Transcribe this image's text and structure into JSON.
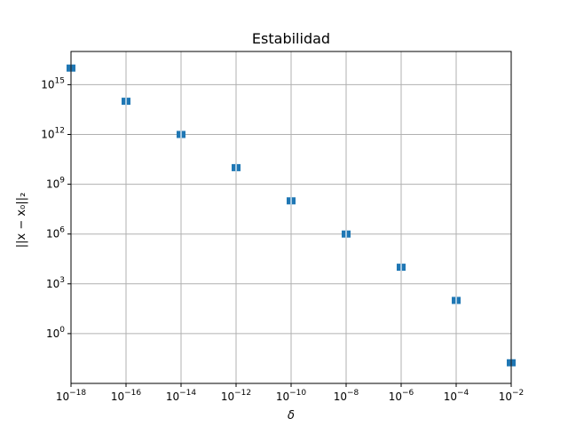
{
  "chart_data": {
    "type": "scatter",
    "title": "Estabilidad",
    "xlabel": "δ",
    "ylabel": "||x − x₀||₂",
    "xscale": "log",
    "yscale": "log",
    "xlim": [
      1e-18,
      0.01
    ],
    "ylim": [
      0.001,
      1e+17
    ],
    "grid": true,
    "marker_color": "#1f77b4",
    "x_ticks": [
      {
        "value": 1e-18,
        "base": "10",
        "exp": "−18"
      },
      {
        "value": 1e-16,
        "base": "10",
        "exp": "−16"
      },
      {
        "value": 1e-14,
        "base": "10",
        "exp": "−14"
      },
      {
        "value": 1e-12,
        "base": "10",
        "exp": "−12"
      },
      {
        "value": 1e-10,
        "base": "10",
        "exp": "−10"
      },
      {
        "value": 1e-08,
        "base": "10",
        "exp": "−8"
      },
      {
        "value": 1e-06,
        "base": "10",
        "exp": "−6"
      },
      {
        "value": 0.0001,
        "base": "10",
        "exp": "−4"
      },
      {
        "value": 0.01,
        "base": "10",
        "exp": "−2"
      }
    ],
    "y_ticks": [
      {
        "value": 1,
        "base": "10",
        "exp": "0"
      },
      {
        "value": 1000.0,
        "base": "10",
        "exp": "3"
      },
      {
        "value": 1000000.0,
        "base": "10",
        "exp": "6"
      },
      {
        "value": 1000000000.0,
        "base": "10",
        "exp": "9"
      },
      {
        "value": 1000000000000.0,
        "base": "10",
        "exp": "12"
      },
      {
        "value": 1000000000000000.0,
        "base": "10",
        "exp": "15"
      }
    ],
    "points": [
      {
        "x": 1e-18,
        "y": 1e+16
      },
      {
        "x": 1e-16,
        "y": 100000000000000.0
      },
      {
        "x": 1e-14,
        "y": 1000000000000.0
      },
      {
        "x": 1e-12,
        "y": 10000000000.0
      },
      {
        "x": 1e-10,
        "y": 100000000.0
      },
      {
        "x": 1e-08,
        "y": 1000000.0
      },
      {
        "x": 1e-06,
        "y": 10000.0
      },
      {
        "x": 0.0001,
        "y": 100.0
      },
      {
        "x": 0.01,
        "y": 0.0175
      }
    ]
  }
}
